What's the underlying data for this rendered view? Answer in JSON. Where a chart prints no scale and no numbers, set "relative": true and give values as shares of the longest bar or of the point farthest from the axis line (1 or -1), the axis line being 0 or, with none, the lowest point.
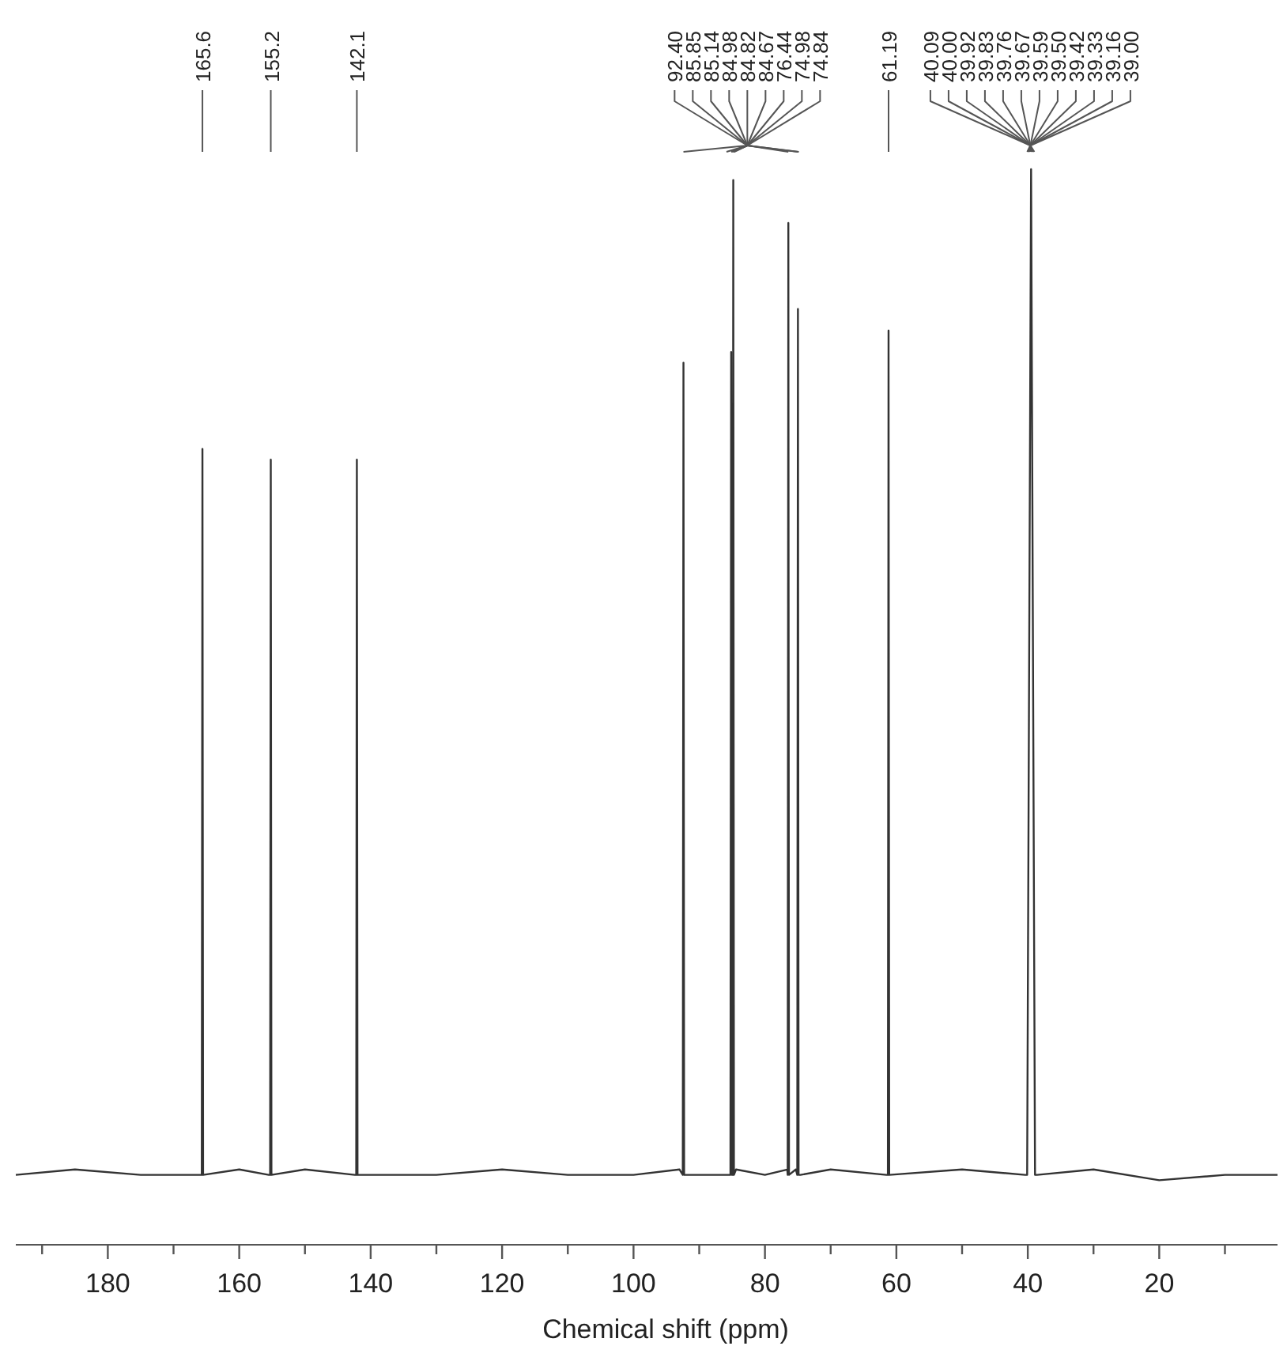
{
  "chart_data": {
    "type": "line",
    "relative": true,
    "xlabel": "Chemical shift (ppm)",
    "xlim": [
      194,
      2
    ],
    "xticks": [
      {
        "value": 190,
        "label": null
      },
      180,
      {
        "value": 170,
        "label": null
      },
      160,
      {
        "value": 150,
        "label": null
      },
      140,
      {
        "value": 130,
        "label": null
      },
      120,
      {
        "value": 110,
        "label": null
      },
      100,
      {
        "value": 90,
        "label": null
      },
      80,
      {
        "value": 70,
        "label": null
      },
      60,
      {
        "value": 50,
        "label": null
      },
      40,
      {
        "value": 30,
        "label": null
      },
      20,
      {
        "value": 10,
        "label": null
      }
    ],
    "tick_labels": "x",
    "grid": false,
    "marker": "none",
    "line_style": "solid",
    "series": [
      {
        "color": "#333333",
        "x": [
          194,
          185,
          175,
          166.0,
          165.7,
          165.6,
          165.5,
          160,
          155.5,
          155.3,
          155.2,
          155.1,
          150,
          142.4,
          142.2,
          142.1,
          142.0,
          130,
          120,
          110,
          100,
          93,
          92.5,
          92.4,
          92.3,
          88,
          85.25,
          85.14,
          85.03,
          84.92,
          84.82,
          84.72,
          84.4,
          80,
          76.6,
          76.54,
          76.44,
          76.34,
          75.3,
          75.08,
          74.98,
          74.88,
          74.6,
          70,
          61.5,
          61.29,
          61.19,
          61.09,
          50,
          40.4,
          40.1,
          39.5,
          38.9,
          38.6,
          30,
          20,
          10,
          2
        ],
        "values": [
          0.065,
          0.07,
          0.065,
          0.065,
          0.065,
          0.74,
          0.065,
          0.07,
          0.065,
          0.065,
          0.73,
          0.065,
          0.07,
          0.065,
          0.065,
          0.73,
          0.065,
          0.065,
          0.07,
          0.065,
          0.065,
          0.07,
          0.065,
          0.82,
          0.065,
          0.065,
          0.065,
          0.83,
          0.065,
          0.065,
          0.99,
          0.065,
          0.07,
          0.065,
          0.07,
          0.065,
          0.95,
          0.065,
          0.07,
          0.065,
          0.87,
          0.065,
          0.065,
          0.07,
          0.065,
          0.065,
          0.85,
          0.065,
          0.07,
          0.065,
          0.065,
          1,
          0.065,
          0.065,
          0.07,
          0.06,
          0.065,
          0.065
        ]
      }
    ],
    "annotations": [
      {
        "text": "165.6",
        "x": 165.6
      },
      {
        "text": "155.2",
        "x": 155.2
      },
      {
        "text": "142.1",
        "x": 142.1
      },
      {
        "text": "92.40",
        "x": 92.4
      },
      {
        "text": "85.85",
        "x": 85.85
      },
      {
        "text": "85.14",
        "x": 85.14
      },
      {
        "text": "84.98",
        "x": 84.98
      },
      {
        "text": "84.82",
        "x": 84.82
      },
      {
        "text": "84.67",
        "x": 84.67
      },
      {
        "text": "76.44",
        "x": 76.44
      },
      {
        "text": "74.98",
        "x": 74.98
      },
      {
        "text": "74.84",
        "x": 74.84
      },
      {
        "text": "61.19",
        "x": 61.19
      },
      {
        "text": "40.09",
        "x": 40.09
      },
      {
        "text": "40.00",
        "x": 40.0
      },
      {
        "text": "39.92",
        "x": 39.92
      },
      {
        "text": "39.83",
        "x": 39.83
      },
      {
        "text": "39.76",
        "x": 39.76
      },
      {
        "text": "39.67",
        "x": 39.67
      },
      {
        "text": "39.59",
        "x": 39.59
      },
      {
        "text": "39.50",
        "x": 39.5
      },
      {
        "text": "39.42",
        "x": 39.42
      },
      {
        "text": "39.33",
        "x": 39.33
      },
      {
        "text": "39.16",
        "x": 39.16
      },
      {
        "text": "39.00",
        "x": 39.0
      }
    ]
  }
}
